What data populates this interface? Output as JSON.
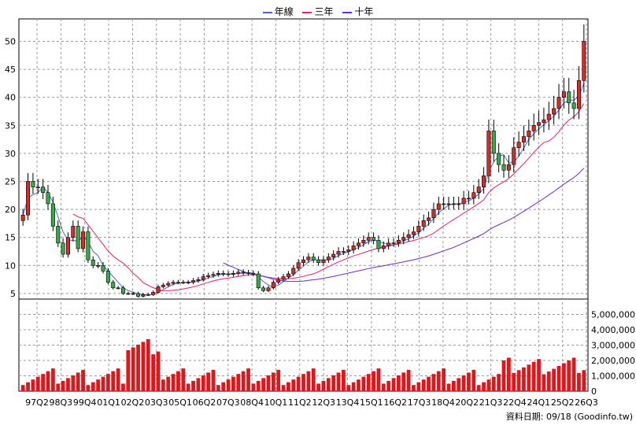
{
  "legend": [
    {
      "label": "年線",
      "color": "#3b6fc9"
    },
    {
      "label": "三年",
      "color": "#e0206a"
    },
    {
      "label": "十年",
      "color": "#6a2bd0"
    }
  ],
  "footer": {
    "text": "資料日期: 09/18   (Goodinfo.tw)"
  },
  "chart_data": {
    "type": "candlestick+bar",
    "price_axis": {
      "ylim": [
        4,
        54
      ],
      "ticks": [
        5,
        10,
        15,
        20,
        25,
        30,
        35,
        40,
        45,
        50
      ]
    },
    "volume_axis": {
      "ylim": [
        0,
        6000000
      ],
      "ticks": [
        0,
        1000000,
        2000000,
        3000000,
        4000000,
        5000000
      ],
      "tick_labels": [
        "0",
        "1,000,000",
        "2,000,000",
        "3,000,000",
        "4,000,000",
        "5,000,000"
      ]
    },
    "x_tick_labels": [
      "97Q2",
      "98Q3",
      "99Q4",
      "01Q1",
      "02Q2",
      "03Q3",
      "05Q1",
      "06Q2",
      "07Q3",
      "08Q4",
      "10Q1",
      "11Q2",
      "12Q3",
      "13Q4",
      "15Q1",
      "16Q2",
      "17Q3",
      "18Q4",
      "20Q2",
      "21Q3",
      "22Q4",
      "24Q1",
      "25Q2",
      "26Q3"
    ],
    "grid": true,
    "candle_up_color": "#d42b2b",
    "candle_down_color": "#3aa84a",
    "volume_color": "#e0161b",
    "candles_close": [
      19,
      25,
      24,
      24,
      23,
      21,
      17,
      14,
      12,
      15,
      17,
      13,
      16,
      11,
      10,
      10,
      9,
      7,
      6,
      6,
      5,
      5,
      5,
      4.5,
      4.8,
      4.8,
      5.2,
      6.2,
      6.5,
      6.8,
      7,
      7,
      7,
      7,
      7.3,
      7.5,
      8,
      8.2,
      8.4,
      8.6,
      8.5,
      8.4,
      8.6,
      8.8,
      8.7,
      8.6,
      8.5,
      6,
      5.5,
      6,
      7,
      7.5,
      8,
      8.5,
      9.5,
      10.5,
      11,
      11.5,
      11,
      10.5,
      11,
      11.5,
      12,
      12.5,
      12.5,
      12.8,
      13.5,
      14,
      14.5,
      15,
      14.5,
      13,
      13.5,
      14,
      14,
      14.5,
      15,
      15.5,
      16,
      17,
      18,
      18.5,
      20,
      21,
      21,
      21,
      21,
      21,
      22,
      22,
      23,
      24,
      26,
      34,
      30,
      28,
      27,
      28,
      31,
      32,
      33,
      34,
      35,
      35.5,
      36,
      37,
      38,
      40,
      41,
      39,
      38,
      43,
      50
    ]
  }
}
